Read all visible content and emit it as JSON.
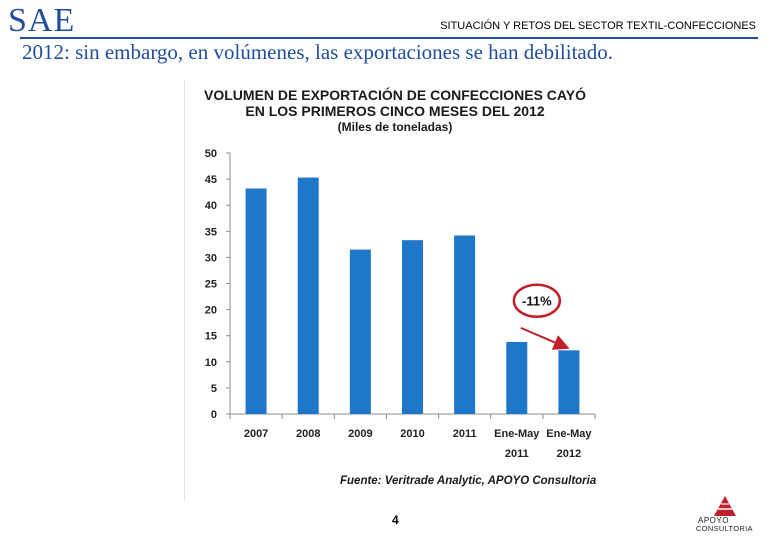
{
  "header": {
    "logo": "SAE",
    "section_title": "SITUACIÓN Y RETOS DEL SECTOR TEXTIL-CONFECCIONES"
  },
  "slide": {
    "subtitle": "2012: sin embargo, en volúmenes, las exportaciones se han debilitado.",
    "source": "Fuente: Veritrade Analytic, APOYO Consultoria",
    "page_number": "4"
  },
  "brand": {
    "line1": "APOYO",
    "line2": "CONSULTORIA"
  },
  "colors": {
    "brand_blue": "#1f4e9c",
    "bar_blue": "#1f77c9",
    "annotation_red": "#c0202a"
  },
  "chart_data": {
    "type": "bar",
    "title": "VOLUMEN DE EXPORTACIÓN DE CONFECCIONES CAYÓ",
    "title_line2": "EN LOS PRIMEROS CINCO MESES DEL 2012",
    "unit_label": "(Miles de toneladas)",
    "categories": [
      {
        "line1": "2007",
        "line2": ""
      },
      {
        "line1": "2008",
        "line2": ""
      },
      {
        "line1": "2009",
        "line2": ""
      },
      {
        "line1": "2010",
        "line2": ""
      },
      {
        "line1": "2011",
        "line2": ""
      },
      {
        "line1": "Ene-May",
        "line2": "2011"
      },
      {
        "line1": "Ene-May",
        "line2": "2012"
      }
    ],
    "values": [
      43.2,
      45.3,
      31.5,
      33.3,
      34.2,
      13.8,
      12.2
    ],
    "ylim": [
      0,
      50
    ],
    "yticks": [
      "0",
      "5",
      "10",
      "15",
      "20",
      "25",
      "30",
      "35",
      "40",
      "45",
      "50"
    ],
    "annotation": {
      "label": "-11%",
      "from_index": 5,
      "to_index": 6
    }
  }
}
